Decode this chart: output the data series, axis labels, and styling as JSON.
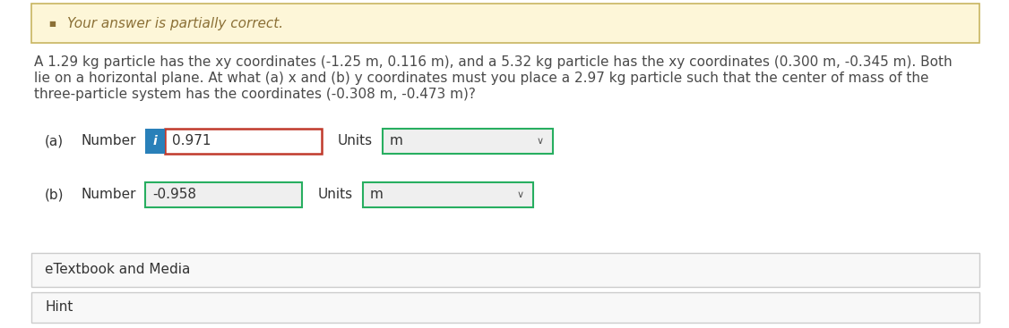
{
  "bg_color": "#ffffff",
  "banner_bg": "#fdf6d8",
  "banner_border": "#c8b560",
  "banner_text": "Your answer is partially correct.",
  "banner_icon_color": "#8B7036",
  "question_line1": "A 1.29 kg particle has the xy coordinates (-1.25 m, 0.116 m), and a 5.32 kg particle has the xy coordinates (0.300 m, -0.345 m). Both",
  "question_line2": "lie on a horizontal plane. At what (a) x and (b) y coordinates must you place a 2.97 kg particle such that the center of mass of the",
  "question_line3": "three-particle system has the coordinates (-0.308 m, -0.473 m)?",
  "part_a_label": "(a)",
  "part_b_label": "(b)",
  "number_label": "Number",
  "units_label": "Units",
  "part_a_value": "0.971",
  "part_b_value": "-0.958",
  "units_value": "m",
  "etextbook_text": "eTextbook and Media",
  "hint_text": "Hint",
  "input_bg": "#efefef",
  "input_bg_white": "#ffffff",
  "input_border_red": "#c0392b",
  "input_border_green": "#27ae60",
  "units_border_green": "#27ae60",
  "info_btn_color": "#2980b9",
  "section_border": "#cccccc",
  "text_color": "#4a4a4a",
  "bold_label_color": "#333333",
  "text_fontsize": 11,
  "small_fontsize": 10,
  "banner_fontsize": 11
}
